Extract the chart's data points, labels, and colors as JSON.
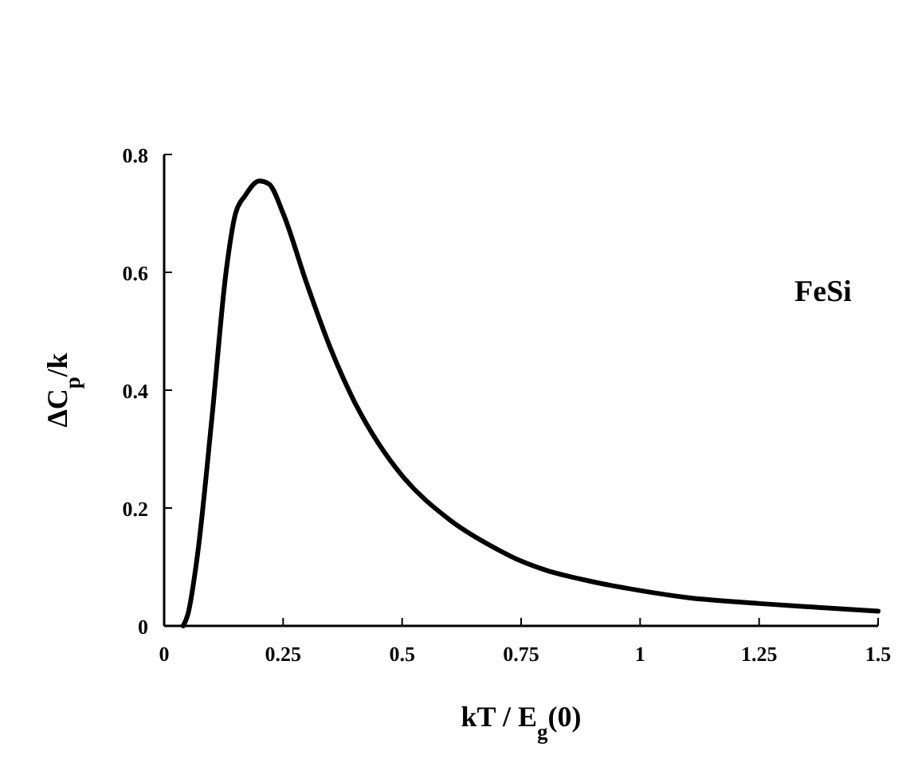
{
  "chart_data": {
    "type": "line",
    "xlabel": "kT / E$_{g}$(0)",
    "ylabel": "ΔC$_{p}$/k",
    "annotations": [
      "FeSi"
    ],
    "xlim": [
      0,
      1.5
    ],
    "xticks": [
      0,
      0.25,
      0.5,
      0.75,
      1,
      1.25,
      1.5
    ],
    "ylim": [
      0,
      0.8
    ],
    "yticks": [
      0,
      0.2,
      0.4,
      0.6,
      0.8
    ],
    "grid": false,
    "marker": "none",
    "line_style": "solid",
    "series": [
      {
        "color": "#000000",
        "x": [
          0.04,
          0.05,
          0.07,
          0.1,
          0.13,
          0.15,
          0.17,
          0.2,
          0.22,
          0.25,
          0.3,
          0.35,
          0.4,
          0.45,
          0.5,
          0.6,
          0.7,
          0.75,
          0.8,
          0.9,
          1.0,
          1.1,
          1.25,
          1.4,
          1.5
        ],
        "values": [
          0,
          0.02,
          0.12,
          0.35,
          0.6,
          0.7,
          0.73,
          0.755,
          0.75,
          0.7,
          0.58,
          0.47,
          0.38,
          0.31,
          0.255,
          0.18,
          0.13,
          0.11,
          0.095,
          0.075,
          0.06,
          0.048,
          0.038,
          0.03,
          0.025
        ]
      }
    ]
  }
}
